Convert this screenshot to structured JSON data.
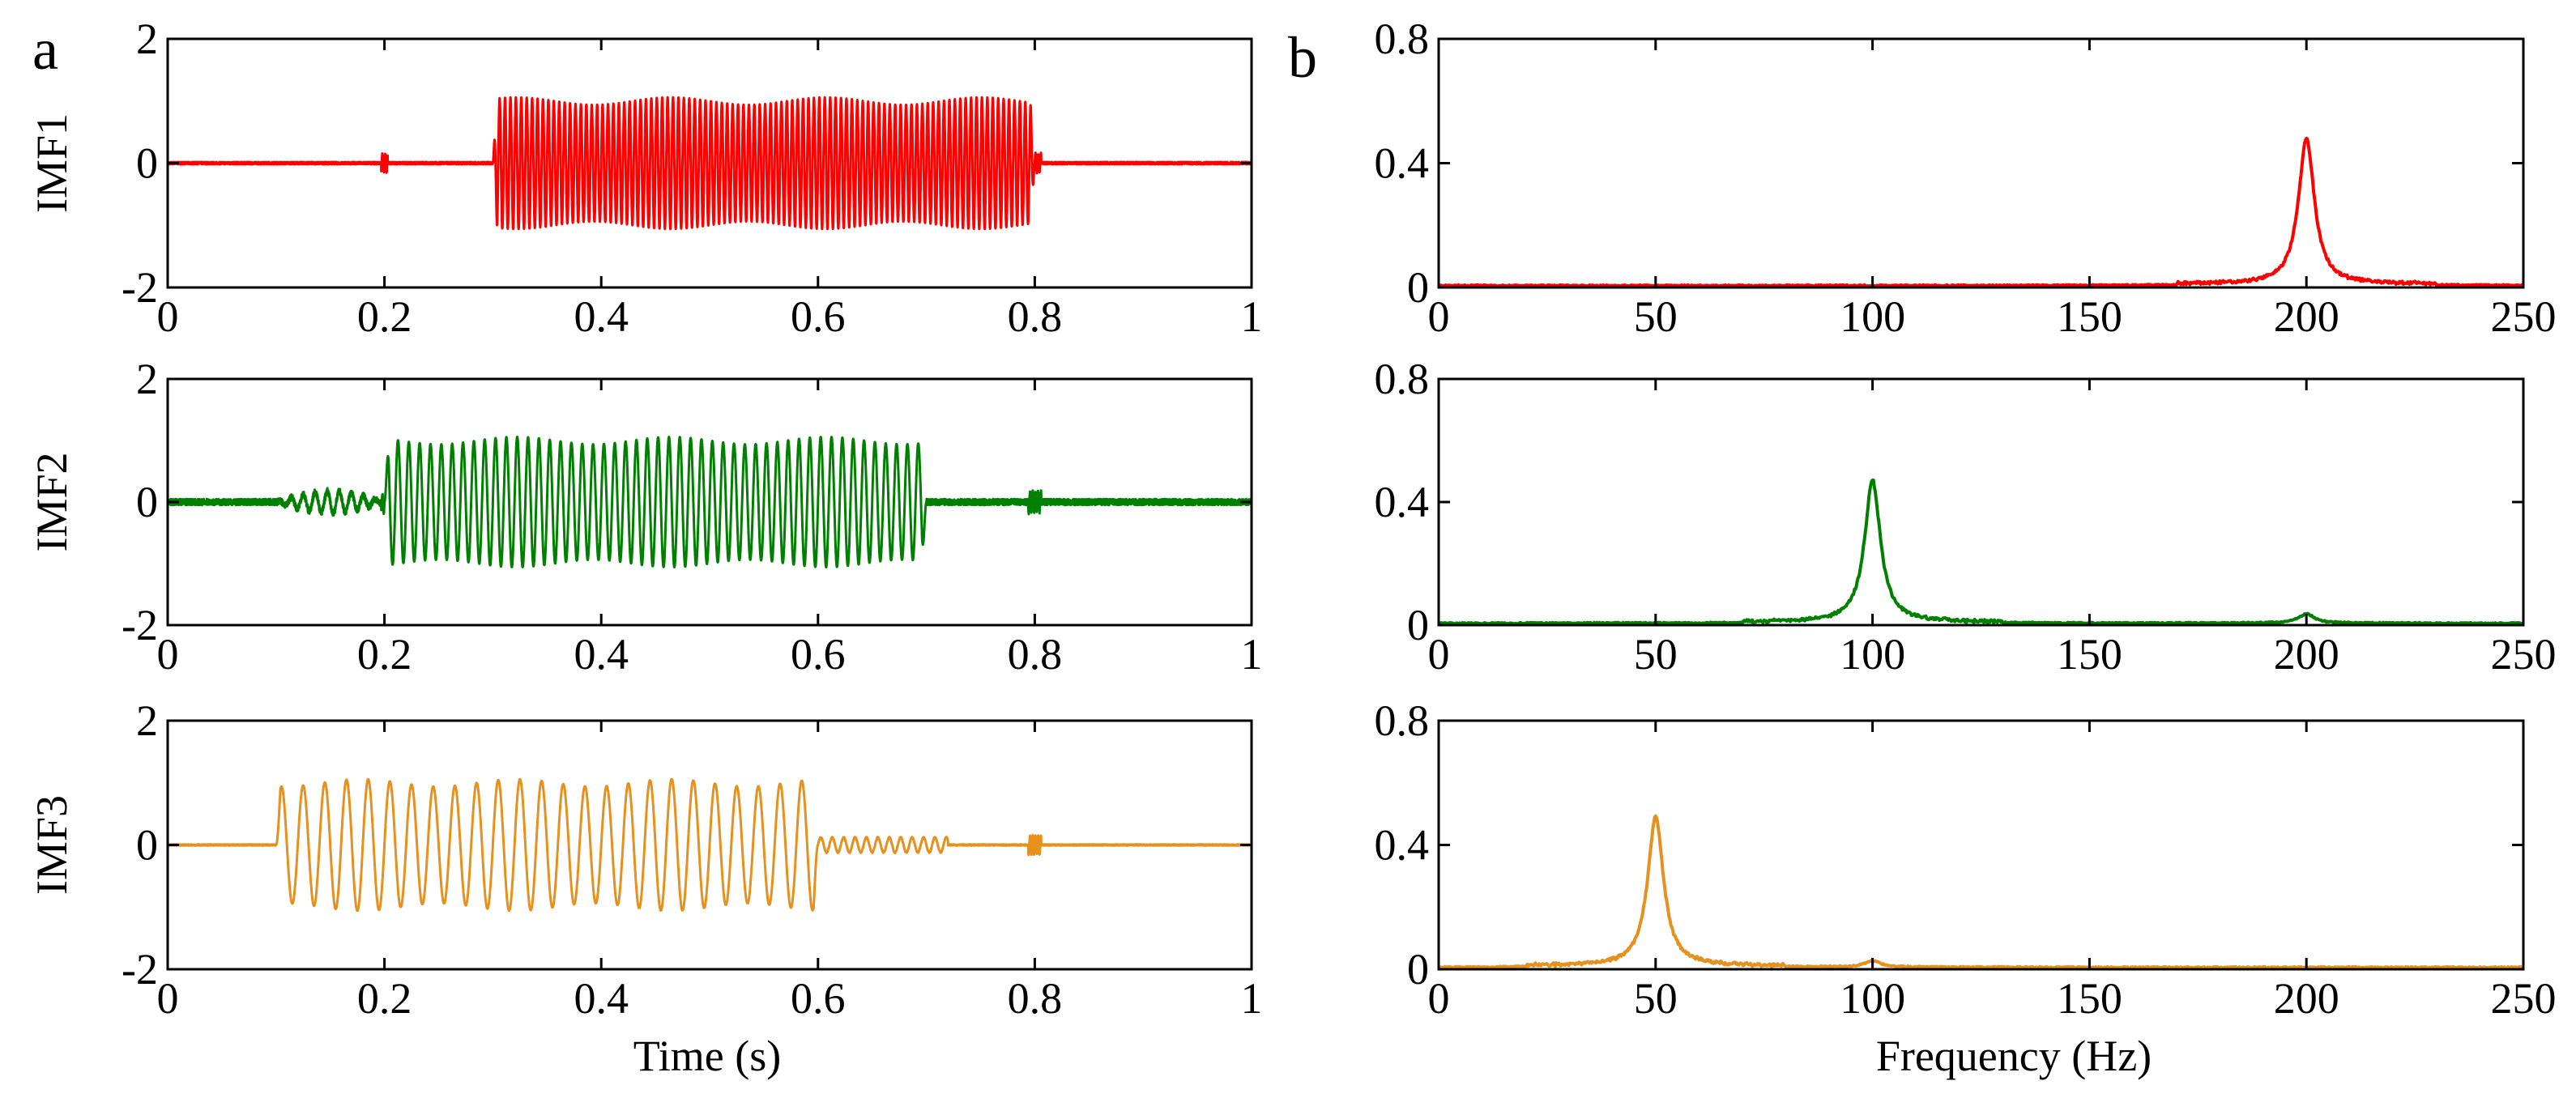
{
  "figure": {
    "panel_a": "a",
    "panel_b": "b",
    "time_xlabel": "Time (s)",
    "freq_xlabel": "Frequency (Hz)"
  },
  "colors": {
    "imf1": "#ff0000",
    "imf2": "#008000",
    "imf3": "#e6901e"
  },
  "chart_data": [
    {
      "id": "imf1-time",
      "type": "line",
      "panel": "a",
      "ylabel": "IMF1",
      "xlim": [
        0,
        1
      ],
      "ylim": [
        -2,
        2
      ],
      "xticks": [
        0,
        0.2,
        0.4,
        0.6,
        0.8,
        1
      ],
      "xtick_labels": [
        "0",
        "0.2",
        "0.4",
        "0.6",
        "0.8",
        "1"
      ],
      "yticks": [
        -2,
        0,
        2
      ],
      "ytick_labels": [
        "-2",
        "0",
        "2"
      ],
      "series": [
        {
          "name": "IMF1",
          "color": "#ff0000",
          "signal": {
            "kind": "burst",
            "freq": 200,
            "start": 0.3,
            "end": 0.8,
            "amplitude": 1.0,
            "pre_noise": 0.02
          }
        }
      ]
    },
    {
      "id": "imf1-spectrum",
      "type": "line",
      "panel": "b",
      "ylabel": "",
      "xlim": [
        0,
        250
      ],
      "ylim": [
        0,
        0.8
      ],
      "xticks": [
        0,
        50,
        100,
        150,
        200,
        250
      ],
      "xtick_labels": [
        "0",
        "50",
        "100",
        "150",
        "200",
        "250"
      ],
      "yticks": [
        0,
        0.4,
        0.8
      ],
      "ytick_labels": [
        "0",
        "0.4",
        "0.8"
      ],
      "series": [
        {
          "name": "IMF1 spectrum",
          "color": "#ff0000",
          "peaks": [
            {
              "f": 200,
              "amplitude": 0.47
            }
          ]
        }
      ]
    },
    {
      "id": "imf2-time",
      "type": "line",
      "panel": "a",
      "ylabel": "IMF2",
      "xlim": [
        0,
        1
      ],
      "ylim": [
        -2,
        2
      ],
      "xticks": [
        0,
        0.2,
        0.4,
        0.6,
        0.8,
        1
      ],
      "xtick_labels": [
        "0",
        "0.2",
        "0.4",
        "0.6",
        "0.8",
        "1"
      ],
      "yticks": [
        -2,
        0,
        2
      ],
      "ytick_labels": [
        "-2",
        "0",
        "2"
      ],
      "series": [
        {
          "name": "IMF2",
          "color": "#008000",
          "signal": {
            "kind": "burst",
            "freq": 100,
            "start": 0.2,
            "end": 0.7,
            "amplitude": 1.0,
            "pre_noise": 0.05
          }
        }
      ]
    },
    {
      "id": "imf2-spectrum",
      "type": "line",
      "panel": "b",
      "ylabel": "",
      "xlim": [
        0,
        250
      ],
      "ylim": [
        0,
        0.8
      ],
      "xticks": [
        0,
        50,
        100,
        150,
        200,
        250
      ],
      "xtick_labels": [
        "0",
        "50",
        "100",
        "150",
        "200",
        "250"
      ],
      "yticks": [
        0,
        0.4,
        0.8
      ],
      "ytick_labels": [
        "0",
        "0.4",
        "0.8"
      ],
      "series": [
        {
          "name": "IMF2 spectrum",
          "color": "#008000",
          "peaks": [
            {
              "f": 100,
              "amplitude": 0.46
            },
            {
              "f": 200,
              "amplitude": 0.03
            }
          ]
        }
      ]
    },
    {
      "id": "imf3-time",
      "type": "line",
      "panel": "a",
      "ylabel": "IMF3",
      "xlim": [
        0,
        1
      ],
      "ylim": [
        -2,
        2
      ],
      "xticks": [
        0,
        0.2,
        0.4,
        0.6,
        0.8,
        1
      ],
      "xtick_labels": [
        "0",
        "0.2",
        "0.4",
        "0.6",
        "0.8",
        "1"
      ],
      "yticks": [
        -2,
        0,
        2
      ],
      "ytick_labels": [
        "-2",
        "0",
        "2"
      ],
      "series": [
        {
          "name": "IMF3",
          "color": "#e6901e",
          "signal": {
            "kind": "burst",
            "freq": 50,
            "start": 0.1,
            "end": 0.6,
            "amplitude": 1.0,
            "pre_noise": 0.01
          }
        }
      ]
    },
    {
      "id": "imf3-spectrum",
      "type": "line",
      "panel": "b",
      "ylabel": "",
      "xlim": [
        0,
        250
      ],
      "ylim": [
        0,
        0.8
      ],
      "xticks": [
        0,
        50,
        100,
        150,
        200,
        250
      ],
      "xtick_labels": [
        "0",
        "50",
        "100",
        "150",
        "200",
        "250"
      ],
      "yticks": [
        0,
        0.4,
        0.8
      ],
      "ytick_labels": [
        "0",
        "0.4",
        "0.8"
      ],
      "series": [
        {
          "name": "IMF3 spectrum",
          "color": "#e6901e",
          "peaks": [
            {
              "f": 50,
              "amplitude": 0.48
            },
            {
              "f": 100,
              "amplitude": 0.02
            }
          ]
        }
      ]
    }
  ]
}
